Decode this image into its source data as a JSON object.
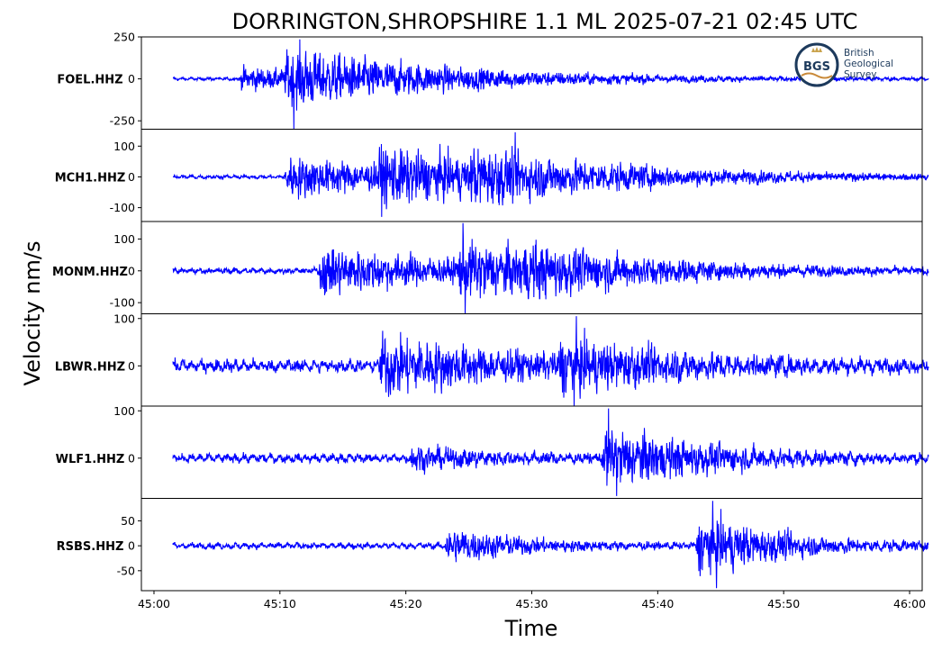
{
  "chart_data": {
    "type": "line",
    "title": "DORRINGTON,SHROPSHIRE 1.1 ML   2025-07-21 02:45 UTC",
    "ylabel": "Velocity nm/s",
    "xlabel": "Time",
    "x_ticks": [
      "45:00",
      "45:10",
      "45:20",
      "45:30",
      "45:40",
      "45:50",
      "46:00"
    ],
    "x_tick_seconds": [
      0,
      10,
      20,
      30,
      40,
      50,
      60
    ],
    "xlim_seconds": [
      -1,
      61
    ],
    "data_range_seconds": [
      1.5,
      61.5
    ],
    "line_color": "#0000ff",
    "grid": false,
    "series": [
      {
        "name": "FOEL.HHZ",
        "ylim": [
          -300,
          250
        ],
        "yticks": [
          250,
          0,
          -250
        ],
        "ytick_labels": [
          "250",
          "0",
          "-250"
        ],
        "noise_amplitude": 6,
        "arrivals": [
          {
            "time": 6.7,
            "peak": 95
          },
          {
            "time": 10.3,
            "peak": 240
          }
        ],
        "extreme_min": -300,
        "extreme_max": 235,
        "decay_seconds": 14
      },
      {
        "name": "MCH1.HHZ",
        "ylim": [
          -145,
          155
        ],
        "yticks": [
          100,
          0,
          -100
        ],
        "ytick_labels": [
          "100",
          "0",
          "-100"
        ],
        "noise_amplitude": 4,
        "arrivals": [
          {
            "time": 10.3,
            "peak": 95
          },
          {
            "time": 17.6,
            "peak": 125
          },
          {
            "time": 25.0,
            "peak": 110
          }
        ],
        "extreme_min": -130,
        "extreme_max": 145,
        "decay_seconds": 14
      },
      {
        "name": "MONM.HHZ",
        "ylim": [
          -135,
          155
        ],
        "yticks": [
          100,
          0,
          -100
        ],
        "ytick_labels": [
          "100",
          "0",
          "-100"
        ],
        "noise_amplitude": 6,
        "arrivals": [
          {
            "time": 13.0,
            "peak": 110
          },
          {
            "time": 24.0,
            "peak": 125
          },
          {
            "time": 29.0,
            "peak": 90
          }
        ],
        "extreme_min": -135,
        "extreme_max": 150,
        "decay_seconds": 13
      },
      {
        "name": "LBWR.HHZ",
        "ylim": [
          -85,
          110
        ],
        "yticks": [
          100,
          0
        ],
        "ytick_labels": [
          "100",
          "0"
        ],
        "noise_amplitude": 9,
        "arrivals": [
          {
            "time": 17.8,
            "peak": 90
          },
          {
            "time": 32.0,
            "peak": 80
          }
        ],
        "extreme_min": -85,
        "extreme_max": 105,
        "decay_seconds": 13
      },
      {
        "name": "WLF1.HHZ",
        "ylim": [
          -85,
          110
        ],
        "yticks": [
          100,
          0
        ],
        "ytick_labels": [
          "100",
          "0"
        ],
        "noise_amplitude": 6,
        "arrivals": [
          {
            "time": 20.2,
            "peak": 35
          },
          {
            "time": 35.5,
            "peak": 95
          }
        ],
        "extreme_min": -80,
        "extreme_max": 105,
        "decay_seconds": 10
      },
      {
        "name": "RSBS.HHZ",
        "ylim": [
          -90,
          95
        ],
        "yticks": [
          50,
          0,
          -50
        ],
        "ytick_labels": [
          "50",
          "0",
          "-50"
        ],
        "noise_amplitude": 4,
        "arrivals": [
          {
            "time": 23.0,
            "peak": 50
          },
          {
            "time": 43.0,
            "peak": 85
          }
        ],
        "extreme_min": -85,
        "extreme_max": 90,
        "decay_seconds": 8
      }
    ]
  },
  "logo": {
    "initials": "BGS",
    "lines": [
      "British",
      "Geological",
      "Survey"
    ],
    "colors": {
      "ring": "#1d3a5c",
      "text": "#1d3a5c",
      "crown": "#c9a24b",
      "wave": "#c98a3a"
    }
  }
}
